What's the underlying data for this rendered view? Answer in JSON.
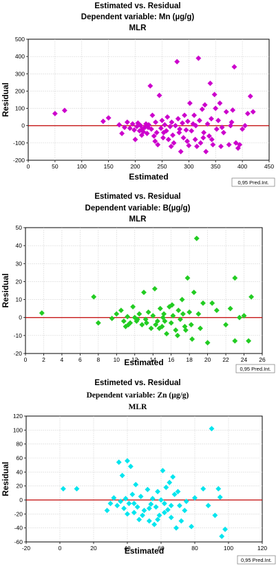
{
  "chart_data": [
    {
      "type": "scatter",
      "title": "Estimated vs. Residual",
      "subtitle": "Dependent variable: Mn (µg/g)",
      "subtitle2": "MLR",
      "xlabel": "Estimated",
      "ylabel": "Residual",
      "legend": "0,95 Pred.Int.",
      "xlim": [
        0,
        450
      ],
      "ylim": [
        -200,
        500
      ],
      "xticks": [
        "0",
        "50",
        "100",
        "150",
        "200",
        "250",
        "300",
        "350",
        "400",
        "450"
      ],
      "yticks": [
        "-200",
        "-100",
        "0",
        "100",
        "200",
        "300",
        "400",
        "500"
      ],
      "color": "#cc00cc",
      "refline": 0,
      "points": [
        [
          50,
          70
        ],
        [
          68,
          88
        ],
        [
          140,
          25
        ],
        [
          150,
          45
        ],
        [
          170,
          5
        ],
        [
          175,
          -45
        ],
        [
          180,
          -10
        ],
        [
          185,
          20
        ],
        [
          190,
          -15
        ],
        [
          195,
          10
        ],
        [
          198,
          -25
        ],
        [
          200,
          -80
        ],
        [
          203,
          -5
        ],
        [
          205,
          15
        ],
        [
          208,
          -30
        ],
        [
          210,
          0
        ],
        [
          212,
          -55
        ],
        [
          215,
          -35
        ],
        [
          218,
          -10
        ],
        [
          220,
          10
        ],
        [
          222,
          -45
        ],
        [
          225,
          5
        ],
        [
          228,
          230
        ],
        [
          230,
          -20
        ],
        [
          232,
          60
        ],
        [
          235,
          -60
        ],
        [
          238,
          20
        ],
        [
          240,
          -40
        ],
        [
          242,
          -110
        ],
        [
          245,
          175
        ],
        [
          248,
          -15
        ],
        [
          250,
          30
        ],
        [
          252,
          -70
        ],
        [
          255,
          5
        ],
        [
          258,
          -30
        ],
        [
          260,
          50
        ],
        [
          262,
          -80
        ],
        [
          265,
          -5
        ],
        [
          268,
          20
        ],
        [
          270,
          -55
        ],
        [
          272,
          -100
        ],
        [
          275,
          0
        ],
        [
          278,
          370
        ],
        [
          280,
          40
        ],
        [
          282,
          -40
        ],
        [
          285,
          -150
        ],
        [
          288,
          15
        ],
        [
          290,
          -70
        ],
        [
          292,
          60
        ],
        [
          295,
          -25
        ],
        [
          298,
          25
        ],
        [
          300,
          -115
        ],
        [
          302,
          130
        ],
        [
          305,
          -30
        ],
        [
          308,
          10
        ],
        [
          310,
          60
        ],
        [
          312,
          -80
        ],
        [
          315,
          -120
        ],
        [
          318,
          390
        ],
        [
          320,
          30
        ],
        [
          322,
          -100
        ],
        [
          325,
          95
        ],
        [
          328,
          -40
        ],
        [
          330,
          120
        ],
        [
          332,
          -150
        ],
        [
          335,
          10
        ],
        [
          338,
          -60
        ],
        [
          340,
          245
        ],
        [
          342,
          40
        ],
        [
          345,
          -110
        ],
        [
          348,
          180
        ],
        [
          350,
          100
        ],
        [
          352,
          -20
        ],
        [
          355,
          30
        ],
        [
          358,
          130
        ],
        [
          360,
          -120
        ],
        [
          365,
          -40
        ],
        [
          370,
          80
        ],
        [
          375,
          -110
        ],
        [
          378,
          0
        ],
        [
          380,
          20
        ],
        [
          385,
          340
        ],
        [
          388,
          -100
        ],
        [
          392,
          -130
        ],
        [
          395,
          -110
        ],
        [
          400,
          -20
        ],
        [
          405,
          0
        ],
        [
          410,
          70
        ],
        [
          415,
          170
        ],
        [
          420,
          80
        ],
        [
          382,
          90
        ],
        [
          362,
          -10
        ],
        [
          343,
          -80
        ],
        [
          327,
          -70
        ],
        [
          313,
          0
        ],
        [
          297,
          -90
        ],
        [
          283,
          -20
        ],
        [
          267,
          -120
        ],
        [
          253,
          -40
        ],
        [
          237,
          -90
        ],
        [
          224,
          -10
        ],
        [
          213,
          -20
        ]
      ]
    },
    {
      "type": "scatter",
      "title": "Estimated vs. Residual",
      "subtitle": "Dependent variable: B(µg/g)",
      "subtitle2": "MLR",
      "xlabel": "Estimated",
      "ylabel": "Residual",
      "legend": "0,95 Pred.Int.",
      "xlim": [
        0,
        26
      ],
      "ylim": [
        -20,
        50
      ],
      "xticks": [
        "0",
        "2",
        "4",
        "6",
        "8",
        "10",
        "12",
        "14",
        "16",
        "18",
        "20",
        "22",
        "24",
        "26"
      ],
      "yticks": [
        "-20",
        "-10",
        "0",
        "10",
        "20",
        "30",
        "40",
        "50"
      ],
      "color": "#22cc22",
      "refline": 0,
      "points": [
        [
          1.8,
          2.5
        ],
        [
          7.5,
          11.5
        ],
        [
          8,
          -3
        ],
        [
          9.5,
          -0.5
        ],
        [
          10,
          2
        ],
        [
          10.5,
          4
        ],
        [
          10.8,
          -2
        ],
        [
          11,
          -5
        ],
        [
          11.2,
          0.5
        ],
        [
          11.5,
          -3
        ],
        [
          11.8,
          6
        ],
        [
          12,
          0
        ],
        [
          12.2,
          -2
        ],
        [
          12.5,
          2
        ],
        [
          12.8,
          -4
        ],
        [
          13,
          14
        ],
        [
          13.2,
          -1
        ],
        [
          13.5,
          3
        ],
        [
          13.8,
          -6
        ],
        [
          14,
          1
        ],
        [
          14.2,
          16
        ],
        [
          14.5,
          -2
        ],
        [
          14.8,
          5
        ],
        [
          15,
          -5
        ],
        [
          15.2,
          2
        ],
        [
          15.5,
          -9
        ],
        [
          15.8,
          6
        ],
        [
          16,
          -3
        ],
        [
          16.2,
          1
        ],
        [
          16.5,
          -7
        ],
        [
          16.8,
          4
        ],
        [
          17,
          -1
        ],
        [
          17.2,
          10
        ],
        [
          17.5,
          -5
        ],
        [
          17.8,
          22
        ],
        [
          18,
          3
        ],
        [
          18.2,
          -4
        ],
        [
          18.5,
          14
        ],
        [
          18.8,
          44
        ],
        [
          19,
          2
        ],
        [
          19.2,
          -6
        ],
        [
          19.5,
          8
        ],
        [
          20,
          -14
        ],
        [
          20.5,
          8
        ],
        [
          21,
          4
        ],
        [
          22,
          -4
        ],
        [
          22.5,
          5
        ],
        [
          23,
          -13
        ],
        [
          23,
          22
        ],
        [
          23.5,
          0
        ],
        [
          24,
          1
        ],
        [
          24.5,
          -13
        ],
        [
          24.8,
          11.5
        ],
        [
          17.3,
          2
        ],
        [
          16.7,
          -10
        ],
        [
          15.3,
          -2
        ],
        [
          14.3,
          -4
        ],
        [
          13.3,
          -3
        ],
        [
          12.3,
          -1
        ],
        [
          11.3,
          -4
        ],
        [
          18.3,
          -12
        ],
        [
          17.6,
          -7
        ],
        [
          16.1,
          7
        ],
        [
          15.1,
          0
        ],
        [
          14.7,
          -6
        ]
      ]
    },
    {
      "type": "scatter",
      "title": "Estimeted vs. Residual",
      "subtitle": "Dependent variable: Zn (µg/g)",
      "subtitle2": "MLR",
      "xlabel": "Estimated",
      "ylabel": "Residual",
      "legend": "0,95 Pred.Int.",
      "xlim": [
        -20,
        120
      ],
      "ylim": [
        -60,
        120
      ],
      "xticks": [
        "-20",
        "0",
        "20",
        "40",
        "60",
        "80",
        "100",
        "120"
      ],
      "yticks": [
        "-60",
        "-40",
        "-20",
        "0",
        "20",
        "40",
        "60",
        "80",
        "100",
        "120"
      ],
      "color": "#00e5ee",
      "refline": 0,
      "points": [
        [
          2,
          16
        ],
        [
          10,
          16
        ],
        [
          28,
          -15
        ],
        [
          30,
          -5
        ],
        [
          32,
          3
        ],
        [
          34,
          -8
        ],
        [
          35,
          54
        ],
        [
          36,
          -2
        ],
        [
          37,
          35
        ],
        [
          38,
          -12
        ],
        [
          39,
          2
        ],
        [
          40,
          -20
        ],
        [
          40,
          56
        ],
        [
          41,
          -5
        ],
        [
          42,
          48
        ],
        [
          43,
          8
        ],
        [
          44,
          -18
        ],
        [
          45,
          22
        ],
        [
          46,
          -10
        ],
        [
          47,
          -28
        ],
        [
          48,
          5
        ],
        [
          50,
          -15
        ],
        [
          52,
          15
        ],
        [
          53,
          -30
        ],
        [
          54,
          -6
        ],
        [
          55,
          2
        ],
        [
          56,
          -35
        ],
        [
          57,
          -10
        ],
        [
          58,
          12
        ],
        [
          59,
          -22
        ],
        [
          60,
          0
        ],
        [
          61,
          42
        ],
        [
          62,
          -5
        ],
        [
          63,
          18
        ],
        [
          64,
          -14
        ],
        [
          65,
          25
        ],
        [
          66,
          -8
        ],
        [
          67,
          33
        ],
        [
          68,
          8
        ],
        [
          69,
          -40
        ],
        [
          70,
          12
        ],
        [
          72,
          -30
        ],
        [
          74,
          -15
        ],
        [
          75,
          -2
        ],
        [
          78,
          -38
        ],
        [
          80,
          3
        ],
        [
          85,
          16
        ],
        [
          88,
          -8
        ],
        [
          90,
          102
        ],
        [
          92,
          -22
        ],
        [
          94,
          16
        ],
        [
          95,
          4
        ],
        [
          96,
          -52
        ],
        [
          98,
          -42
        ],
        [
          53,
          -12
        ],
        [
          49,
          -22
        ],
        [
          44,
          -5
        ],
        [
          58,
          -28
        ],
        [
          62,
          -18
        ],
        [
          66,
          -25
        ],
        [
          71,
          -8
        ]
      ]
    }
  ]
}
